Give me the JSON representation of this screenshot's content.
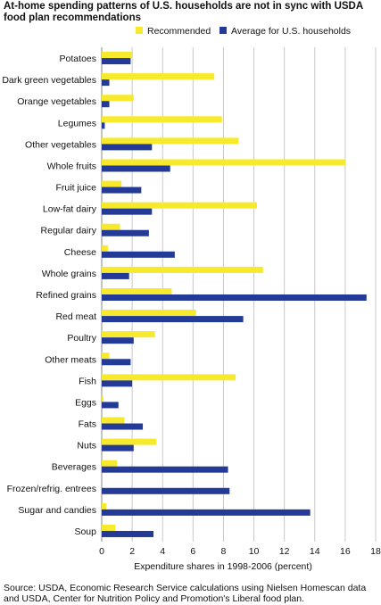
{
  "title": "At-home spending patterns of U.S. households are not in sync with USDA food plan recommendations",
  "source": "Source: USDA, Economic Research Service calculations using Nielsen Homescan data and USDA, Center for Nutrition Policy and Promotion's Liberal food plan.",
  "chart_data": {
    "type": "bar",
    "orientation": "horizontal",
    "categories": [
      "Potatoes",
      "Dark green vegetables",
      "Orange vegetables",
      "Legumes",
      "Other vegetables",
      "Whole fruits",
      "Fruit juice",
      "Low-fat dairy",
      "Regular dairy",
      "Cheese",
      "Whole grains",
      "Refined grains",
      "Red meat",
      "Poultry",
      "Other meats",
      "Fish",
      "Eggs",
      "Fats",
      "Nuts",
      "Beverages",
      "Frozen/refrig. entrees",
      "Sugar and candies",
      "Soup"
    ],
    "series": [
      {
        "name": "Recommended",
        "color": "#f7e92b",
        "values": [
          2.0,
          7.4,
          2.1,
          7.9,
          9.0,
          16.0,
          1.3,
          10.2,
          1.2,
          0.4,
          10.6,
          4.6,
          6.2,
          3.5,
          0.5,
          8.8,
          0.1,
          1.5,
          3.6,
          1.0,
          0.0,
          0.3,
          0.9
        ]
      },
      {
        "name": "Average for U.S. households",
        "color": "#233a96",
        "values": [
          1.9,
          0.5,
          0.5,
          0.2,
          3.3,
          4.5,
          2.6,
          3.3,
          3.1,
          4.8,
          1.8,
          17.4,
          9.3,
          2.1,
          1.9,
          2.0,
          1.1,
          2.7,
          2.1,
          8.3,
          8.4,
          13.7,
          3.4
        ]
      }
    ],
    "xlim": [
      0,
      18
    ],
    "xticks": [
      "0",
      "2",
      "4",
      "6",
      "8",
      "10",
      "12",
      "14",
      "16",
      "18"
    ],
    "xlabel": "Expenditure shares in 1998-2006 (percent)",
    "ylabel": "",
    "grid": "vertical",
    "legend_position": "top"
  }
}
